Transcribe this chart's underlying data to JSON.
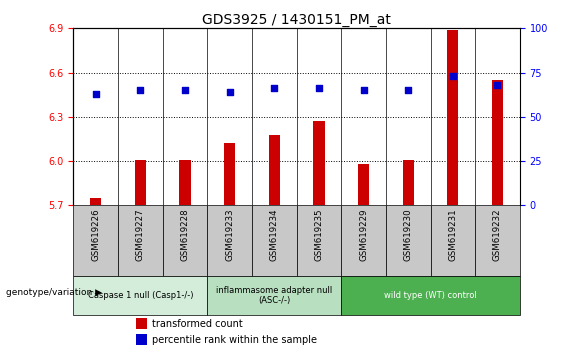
{
  "title": "GDS3925 / 1430151_PM_at",
  "samples": [
    "GSM619226",
    "GSM619227",
    "GSM619228",
    "GSM619233",
    "GSM619234",
    "GSM619235",
    "GSM619229",
    "GSM619230",
    "GSM619231",
    "GSM619232"
  ],
  "bar_values": [
    5.75,
    6.01,
    6.01,
    6.12,
    6.18,
    6.27,
    5.98,
    6.01,
    6.89,
    6.55
  ],
  "percentile_values": [
    63,
    65,
    65,
    64,
    66,
    66,
    65,
    65,
    73,
    68
  ],
  "ylim_left": [
    5.7,
    6.9
  ],
  "ylim_right": [
    0,
    100
  ],
  "yticks_left": [
    5.7,
    6.0,
    6.3,
    6.6,
    6.9
  ],
  "yticks_right": [
    0,
    25,
    50,
    75,
    100
  ],
  "bar_color": "#cc0000",
  "dot_color": "#0000cc",
  "groups": [
    {
      "label": "Caspase 1 null (Casp1-/-)",
      "start": 0,
      "end": 3,
      "color": "#d4edda"
    },
    {
      "label": "inflammasome adapter null\n(ASC-/-)",
      "start": 3,
      "end": 6,
      "color": "#b8dfc0"
    },
    {
      "label": "wild type (WT) control",
      "start": 6,
      "end": 10,
      "color": "#4caf50"
    }
  ],
  "xlabel": "genotype/variation",
  "legend_bar_label": "transformed count",
  "legend_dot_label": "percentile rank within the sample",
  "tick_bg_color": "#c8c8c8",
  "title_fontsize": 10,
  "tick_fontsize": 7,
  "bar_width": 0.25
}
